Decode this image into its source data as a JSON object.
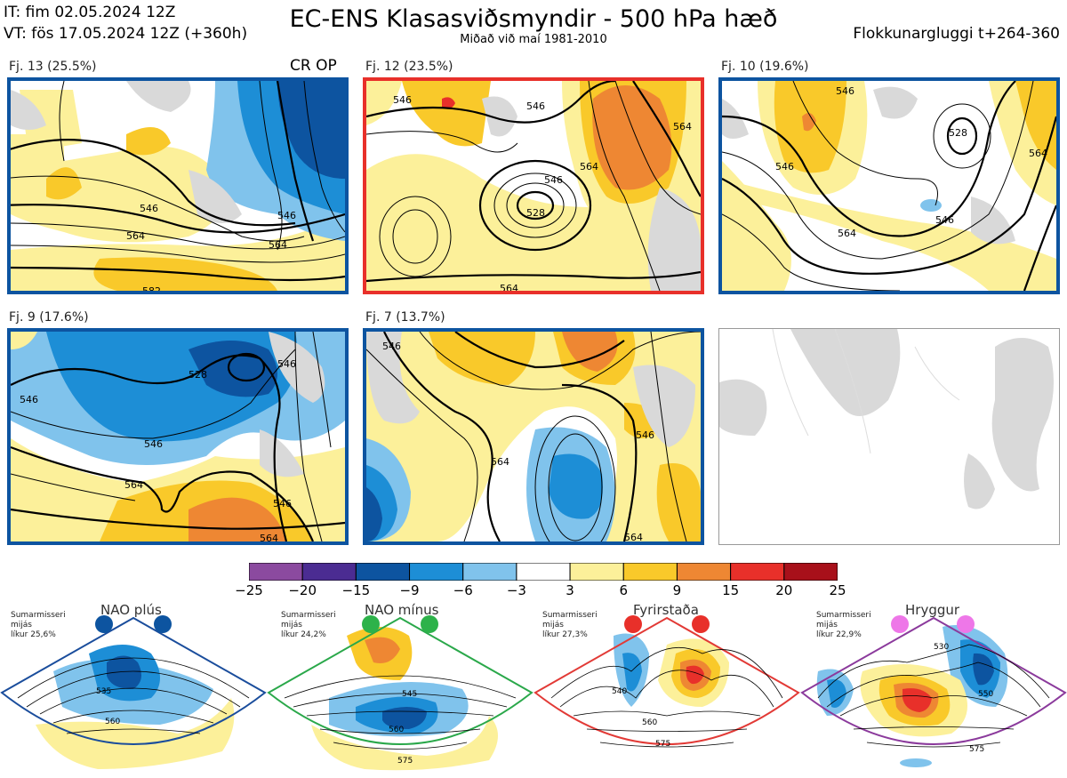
{
  "header": {
    "it": "IT: fim 02.05.2024 12Z",
    "vt": "VT: fös 17.05.2024 12Z  (+360h)",
    "title": "EC-ENS Klasasviðsmyndir - 500 hPa hæð",
    "subtitle": "Miðað við maí 1981-2010",
    "window": "Flokkunargluggi t+264-360"
  },
  "clusters": [
    {
      "label": "Fj. 13 (25.5%)",
      "border_color": "#0d54a0",
      "tag": "CR OP",
      "contours": [
        "546",
        "564",
        "564",
        "546",
        "582"
      ]
    },
    {
      "label": "Fj. 12 (23.5%)",
      "border_color": "#e8302a",
      "tag": "",
      "contours": [
        "546",
        "546",
        "564",
        "564",
        "546",
        "528",
        "564"
      ]
    },
    {
      "label": "Fj. 10 (19.6%)",
      "border_color": "#0d54a0",
      "tag": "",
      "contours": [
        "528",
        "546",
        "546",
        "564",
        "564",
        "546"
      ]
    },
    {
      "label": "Fj. 9 (17.6%)",
      "border_color": "#0d54a0",
      "tag": "",
      "contours": [
        "528",
        "546",
        "546",
        "546",
        "564",
        "546",
        "564"
      ]
    },
    {
      "label": "Fj. 7 (13.7%)",
      "border_color": "#0d54a0",
      "tag": "",
      "contours": [
        "546",
        "564",
        "546",
        "564"
      ]
    }
  ],
  "colorbar": {
    "ticks": [
      "−25",
      "−20",
      "−15",
      "−9",
      "−6",
      "−3",
      "3",
      "6",
      "9",
      "15",
      "20",
      "25"
    ],
    "colors": [
      "#8b4a9f",
      "#4b2c92",
      "#0d54a0",
      "#1d8ed6",
      "#80c3ec",
      "#ffffff",
      "#fcf09a",
      "#f9c92a",
      "#ee8733",
      "#e8302a",
      "#a8101a"
    ]
  },
  "regimes": [
    {
      "name": "NAO plús",
      "note": [
        "Sumarmisseri",
        "mijás",
        "líkur 25,6%"
      ],
      "dot_color": "#0d54a0",
      "border_color": "#1a4d9c",
      "contours": [
        "535",
        "560"
      ]
    },
    {
      "name": "NAO mínus",
      "note": [
        "Sumarmisseri",
        "mijás",
        "líkur 24,2%"
      ],
      "dot_color": "#2db24a",
      "border_color": "#2aa84a",
      "contours": [
        "545",
        "560",
        "575"
      ]
    },
    {
      "name": "Fyrirstaða",
      "note": [
        "Sumarmisseri",
        "mijás",
        "líkur 27,3%"
      ],
      "dot_color": "#e8302a",
      "border_color": "#e23a36",
      "contours": [
        "540",
        "560",
        "575"
      ]
    },
    {
      "name": "Hryggur",
      "note": [
        "Sumarmisseri",
        "mijás",
        "líkur 22,9%"
      ],
      "dot_color": "#ee77e8",
      "border_color": "#8b3a9c",
      "contours": [
        "530",
        "550",
        "575"
      ]
    }
  ]
}
